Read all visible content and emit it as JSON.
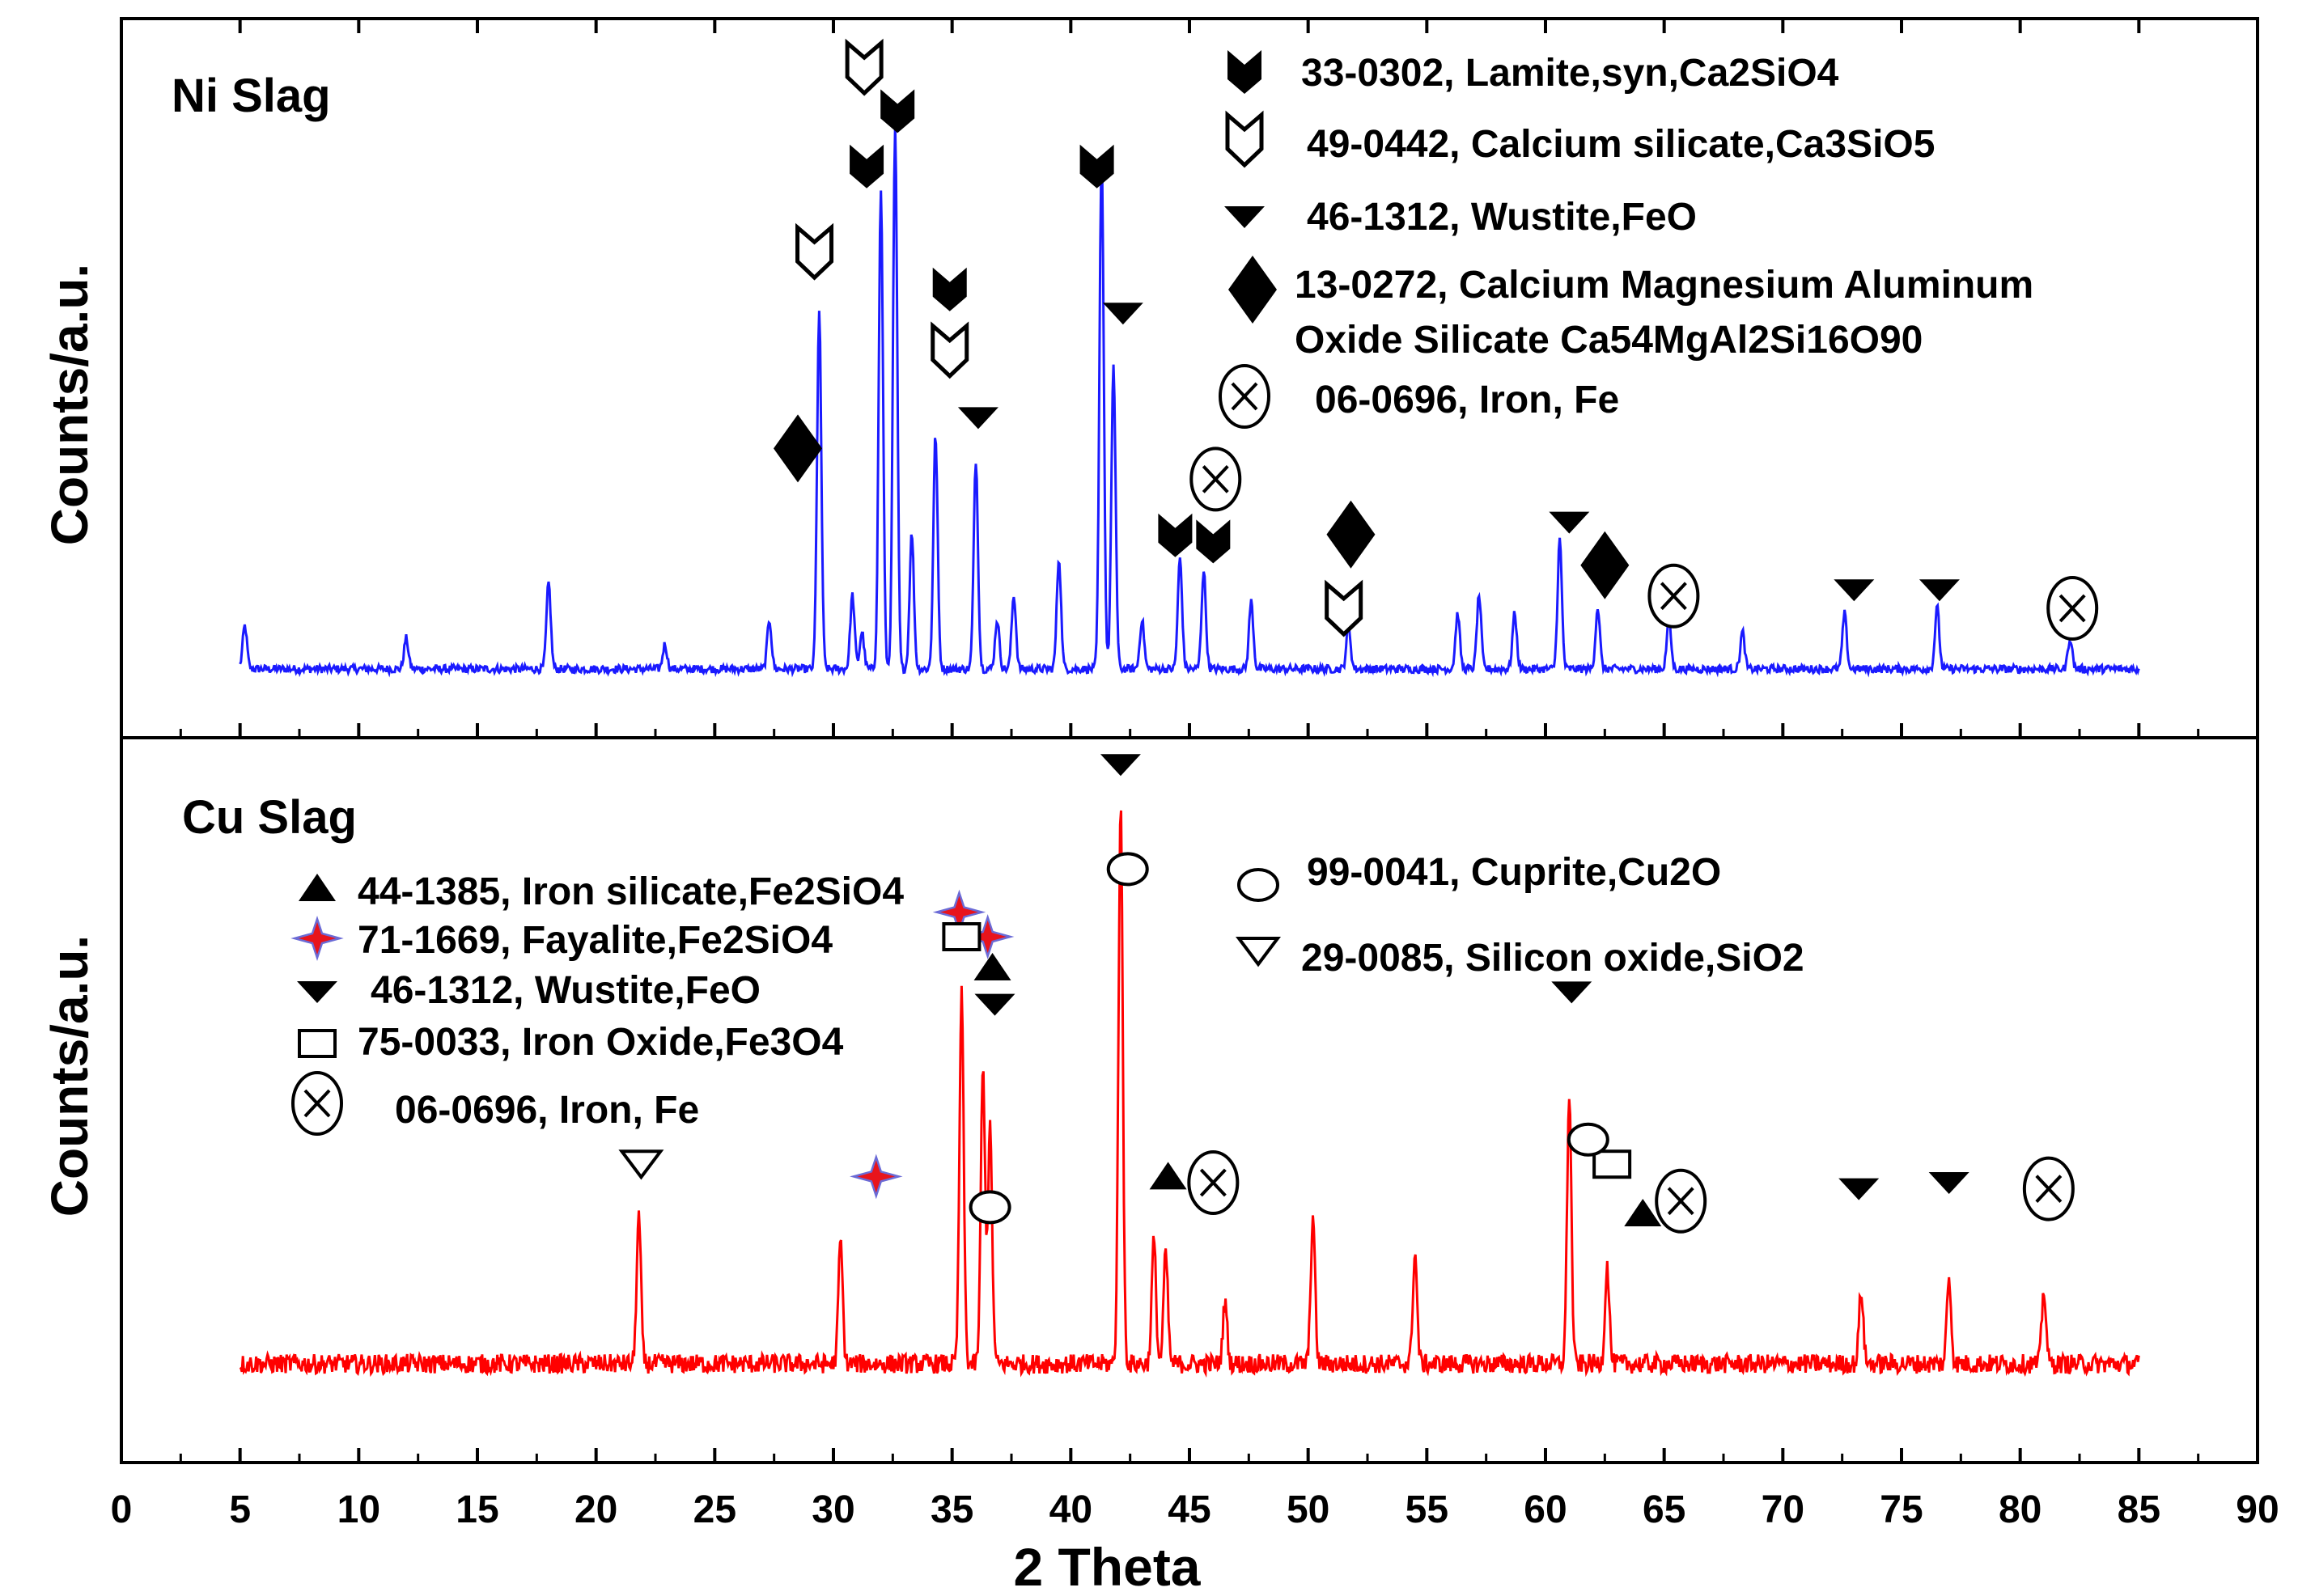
{
  "chart_data": [
    {
      "panel": "top",
      "type": "line",
      "title": "Ni Slag",
      "ylabel": "Counts/a.u.",
      "xlabel": "2 Theta",
      "xlim": [
        0,
        90
      ],
      "ylim": [
        0,
        100
      ],
      "series": [
        {
          "name": "Ni Slag",
          "color": "#1a1aff",
          "peaks": [
            {
              "x": 5.2,
              "h": 7
            },
            {
              "x": 12.0,
              "h": 5
            },
            {
              "x": 18.0,
              "h": 14
            },
            {
              "x": 22.9,
              "h": 4
            },
            {
              "x": 27.3,
              "h": 8
            },
            {
              "x": 29.4,
              "h": 58
            },
            {
              "x": 30.8,
              "h": 12
            },
            {
              "x": 31.2,
              "h": 6
            },
            {
              "x": 32.0,
              "h": 78
            },
            {
              "x": 32.6,
              "h": 88
            },
            {
              "x": 33.3,
              "h": 22
            },
            {
              "x": 34.3,
              "h": 38
            },
            {
              "x": 36.0,
              "h": 34
            },
            {
              "x": 36.9,
              "h": 8
            },
            {
              "x": 37.6,
              "h": 12
            },
            {
              "x": 39.5,
              "h": 18
            },
            {
              "x": 41.3,
              "h": 84
            },
            {
              "x": 41.8,
              "h": 49
            },
            {
              "x": 43.0,
              "h": 8
            },
            {
              "x": 44.6,
              "h": 18
            },
            {
              "x": 45.6,
              "h": 16
            },
            {
              "x": 47.6,
              "h": 11
            },
            {
              "x": 51.7,
              "h": 7
            },
            {
              "x": 56.3,
              "h": 9
            },
            {
              "x": 57.2,
              "h": 12
            },
            {
              "x": 58.7,
              "h": 9
            },
            {
              "x": 60.6,
              "h": 21
            },
            {
              "x": 62.2,
              "h": 10
            },
            {
              "x": 65.2,
              "h": 8
            },
            {
              "x": 68.3,
              "h": 6
            },
            {
              "x": 72.6,
              "h": 9
            },
            {
              "x": 76.5,
              "h": 10
            },
            {
              "x": 82.1,
              "h": 5
            }
          ]
        }
      ],
      "markers": [
        {
          "symbol": "lamite",
          "x": 31.4,
          "y": 82
        },
        {
          "symbol": "lamite",
          "x": 32.7,
          "y": 91
        },
        {
          "symbol": "lamite",
          "x": 41.1,
          "y": 82
        },
        {
          "symbol": "lamite",
          "x": 34.9,
          "y": 62
        },
        {
          "symbol": "lamite",
          "x": 44.4,
          "y": 22
        },
        {
          "symbol": "lamite",
          "x": 46.0,
          "y": 21
        },
        {
          "symbol": "ca3sio5",
          "x": 31.3,
          "y": 98
        },
        {
          "symbol": "ca3sio5",
          "x": 29.2,
          "y": 68
        },
        {
          "symbol": "ca3sio5",
          "x": 34.9,
          "y": 52
        },
        {
          "symbol": "ca3sio5",
          "x": 51.5,
          "y": 10
        },
        {
          "symbol": "wustite",
          "x": 36.1,
          "y": 41
        },
        {
          "symbol": "wustite",
          "x": 42.2,
          "y": 58
        },
        {
          "symbol": "wustite",
          "x": 61.0,
          "y": 24
        },
        {
          "symbol": "wustite",
          "x": 73.0,
          "y": 13
        },
        {
          "symbol": "wustite",
          "x": 76.6,
          "y": 13
        },
        {
          "symbol": "diamond",
          "x": 28.5,
          "y": 36
        },
        {
          "symbol": "diamond",
          "x": 51.8,
          "y": 22
        },
        {
          "symbol": "diamond",
          "x": 62.5,
          "y": 17
        },
        {
          "symbol": "iron",
          "x": 46.1,
          "y": 31
        },
        {
          "symbol": "iron",
          "x": 65.4,
          "y": 12
        },
        {
          "symbol": "iron",
          "x": 82.2,
          "y": 10
        }
      ],
      "legend": [
        {
          "symbol": "lamite",
          "label": "33-0302, Lamite,syn,Ca2SiO4"
        },
        {
          "symbol": "ca3sio5",
          "label": "49-0442, Calcium silicate,Ca3SiO5"
        },
        {
          "symbol": "wustite",
          "label": "46-1312, Wustite,FeO"
        },
        {
          "symbol": "diamond",
          "label": "13-0272, Calcium Magnesium Aluminum",
          "label2": "Oxide Silicate   Ca54MgAl2Si16O90"
        },
        {
          "symbol": "iron",
          "label": "06-0696, Iron, Fe"
        }
      ]
    },
    {
      "panel": "bottom",
      "type": "line",
      "title": "Cu Slag",
      "ylabel": "Counts/a.u.",
      "xlabel": "2 Theta",
      "xlim": [
        0,
        90
      ],
      "ylim": [
        0,
        100
      ],
      "series": [
        {
          "name": "Cu Slag",
          "color": "#ff0000",
          "peaks": [
            {
              "x": 21.8,
              "h": 24
            },
            {
              "x": 30.3,
              "h": 20
            },
            {
              "x": 35.4,
              "h": 60
            },
            {
              "x": 36.3,
              "h": 48
            },
            {
              "x": 36.6,
              "h": 38
            },
            {
              "x": 42.1,
              "h": 91
            },
            {
              "x": 43.5,
              "h": 20
            },
            {
              "x": 44.0,
              "h": 18
            },
            {
              "x": 46.5,
              "h": 10
            },
            {
              "x": 50.2,
              "h": 24
            },
            {
              "x": 54.5,
              "h": 18
            },
            {
              "x": 61.0,
              "h": 44
            },
            {
              "x": 62.6,
              "h": 16
            },
            {
              "x": 73.3,
              "h": 12
            },
            {
              "x": 77.0,
              "h": 14
            },
            {
              "x": 81.0,
              "h": 12
            }
          ]
        }
      ],
      "markers": [
        {
          "symbol": "wustite",
          "x": 42.1,
          "y": 98
        },
        {
          "symbol": "wustite",
          "x": 36.8,
          "y": 59
        },
        {
          "symbol": "wustite",
          "x": 61.1,
          "y": 61
        },
        {
          "symbol": "wustite",
          "x": 73.2,
          "y": 29
        },
        {
          "symbol": "wustite",
          "x": 77.0,
          "y": 30
        },
        {
          "symbol": "fe2sio4",
          "x": 36.7,
          "y": 65
        },
        {
          "symbol": "fe2sio4",
          "x": 44.1,
          "y": 31
        },
        {
          "symbol": "fe2sio4",
          "x": 64.1,
          "y": 25
        },
        {
          "symbol": "fayalite",
          "x": 35.3,
          "y": 74
        },
        {
          "symbol": "fayalite",
          "x": 36.5,
          "y": 70
        },
        {
          "symbol": "fayalite",
          "x": 31.8,
          "y": 31
        },
        {
          "symbol": "fe3o4",
          "x": 35.4,
          "y": 70
        },
        {
          "symbol": "fe3o4",
          "x": 62.8,
          "y": 33
        },
        {
          "symbol": "cuprite",
          "x": 42.4,
          "y": 81
        },
        {
          "symbol": "cuprite",
          "x": 36.6,
          "y": 26
        },
        {
          "symbol": "cuprite",
          "x": 61.8,
          "y": 37
        },
        {
          "symbol": "sio2",
          "x": 21.9,
          "y": 33
        },
        {
          "symbol": "iron",
          "x": 46.0,
          "y": 30
        },
        {
          "symbol": "iron",
          "x": 65.7,
          "y": 27
        },
        {
          "symbol": "iron",
          "x": 81.2,
          "y": 29
        }
      ],
      "legend": [
        {
          "symbol": "fe2sio4",
          "label": "44-1385, Iron silicate,Fe2SiO4"
        },
        {
          "symbol": "fayalite",
          "label": "71-1669, Fayalite,Fe2SiO4"
        },
        {
          "symbol": "wustite",
          "label": "46-1312, Wustite,FeO"
        },
        {
          "symbol": "fe3o4",
          "label": "75-0033, Iron Oxide,Fe3O4"
        },
        {
          "symbol": "iron",
          "label": "06-0696, Iron, Fe"
        },
        {
          "symbol": "cuprite",
          "label": "99-0041, Cuprite,Cu2O"
        },
        {
          "symbol": "sio2",
          "label": "29-0085, Silicon oxide,SiO2"
        }
      ]
    }
  ],
  "x_ticks": [
    "0",
    "5",
    "10",
    "15",
    "20",
    "25",
    "30",
    "35",
    "40",
    "45",
    "50",
    "55",
    "60",
    "65",
    "70",
    "75",
    "80",
    "85",
    "90"
  ]
}
